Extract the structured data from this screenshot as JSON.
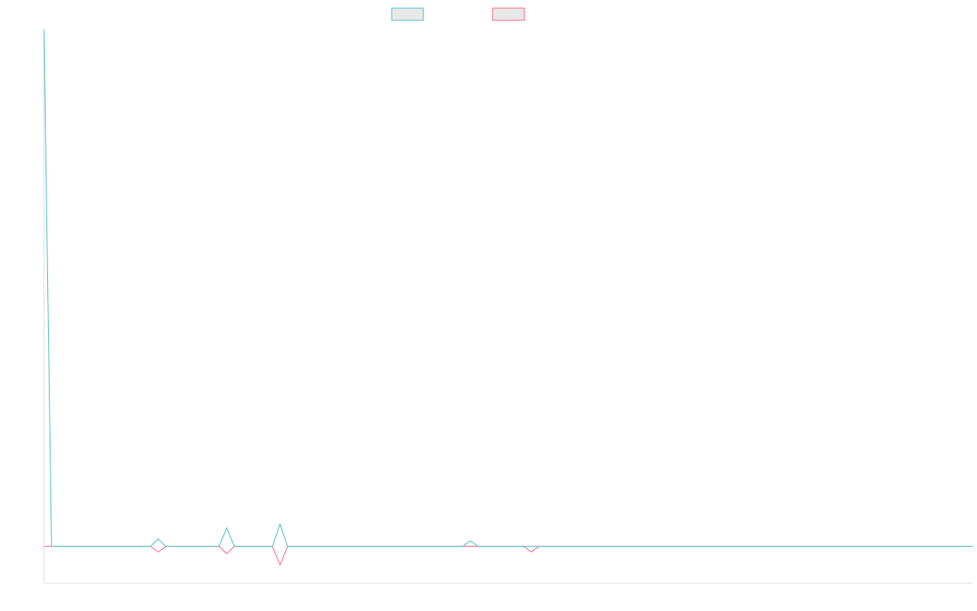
{
  "chart_data": {
    "type": "line",
    "title": "",
    "xlabel": "",
    "ylabel": "",
    "legend_position": "top-center",
    "grid": false,
    "xlim": [
      0,
      122
    ],
    "ylim": [
      -2,
      28
    ],
    "x": [
      0,
      1,
      2,
      3,
      4,
      5,
      6,
      7,
      8,
      9,
      10,
      11,
      12,
      13,
      14,
      15,
      16,
      17,
      18,
      19,
      20,
      21,
      22,
      23,
      24,
      25,
      26,
      27,
      28,
      29,
      30,
      31,
      32,
      33,
      34,
      35,
      36,
      37,
      38,
      39,
      40,
      41,
      42,
      43,
      44,
      45,
      46,
      47,
      48,
      49,
      50,
      51,
      52,
      53,
      54,
      55,
      56,
      57,
      58,
      59,
      60,
      61,
      62,
      63,
      64,
      65,
      66,
      67,
      68,
      69,
      70,
      71,
      72,
      73,
      74,
      75,
      76,
      77,
      78,
      79,
      80,
      81,
      82,
      83,
      84,
      85,
      86,
      87,
      88,
      89,
      90,
      91,
      92,
      93,
      94,
      95,
      96,
      97,
      98,
      99,
      100,
      101,
      102,
      103,
      104,
      105,
      106,
      107,
      108,
      109,
      110,
      111,
      112,
      113,
      114,
      115,
      116,
      117,
      118,
      119,
      120,
      121,
      122
    ],
    "series": [
      {
        "color": "#4bc0c0",
        "fill": "#e8e8e8",
        "values": [
          28,
          0,
          0,
          0,
          0,
          0,
          0,
          0,
          0,
          0,
          0,
          0,
          0,
          0,
          0,
          0.4,
          0,
          0,
          0,
          0,
          0,
          0,
          0,
          0,
          1,
          0,
          0,
          0,
          0,
          0,
          0,
          1.2,
          0,
          0,
          0,
          0,
          0,
          0,
          0,
          0,
          0,
          0,
          0,
          0,
          0,
          0,
          0,
          0,
          0,
          0,
          0,
          0,
          0,
          0,
          0,
          0,
          0.3,
          0,
          0,
          0,
          0,
          0,
          0,
          0,
          0,
          0,
          0,
          0,
          0,
          0,
          0,
          0,
          0,
          0,
          0,
          0,
          0,
          0,
          0,
          0,
          0,
          0,
          0,
          0,
          0,
          0,
          0,
          0,
          0,
          0,
          0,
          0,
          0,
          0,
          0,
          0,
          0,
          0,
          0,
          0,
          0,
          0,
          0,
          0,
          0,
          0,
          0,
          0,
          0,
          0,
          0,
          0,
          0,
          0,
          0,
          0,
          0,
          0,
          0,
          0,
          0,
          0,
          0
        ]
      },
      {
        "color": "#ff6384",
        "fill": "#e8e8e8",
        "values": [
          0,
          0,
          0,
          0,
          0,
          0,
          0,
          0,
          0,
          0,
          0,
          0,
          0,
          0,
          0,
          -0.3,
          0,
          0,
          0,
          0,
          0,
          0,
          0,
          0,
          -0.4,
          0,
          0,
          0,
          0,
          0,
          0,
          -1,
          0,
          0,
          0,
          0,
          0,
          0,
          0,
          0,
          0,
          0,
          0,
          0,
          0,
          0,
          0,
          0,
          0,
          0,
          0,
          0,
          0,
          0,
          0,
          0,
          0,
          0,
          0,
          0,
          0,
          0,
          0,
          0,
          -0.3,
          0,
          0,
          0,
          0,
          0,
          0,
          0,
          0,
          0,
          0,
          0,
          0,
          0,
          0,
          0,
          0,
          0,
          0,
          0,
          0,
          0,
          0,
          0,
          0,
          0,
          0,
          0,
          0,
          0,
          0,
          0,
          0,
          0,
          0,
          0,
          0,
          0,
          0,
          0,
          0,
          0,
          0,
          0,
          0,
          0,
          0,
          0,
          0,
          0,
          0,
          0,
          0,
          0,
          0,
          0,
          0,
          0,
          0
        ]
      }
    ]
  }
}
